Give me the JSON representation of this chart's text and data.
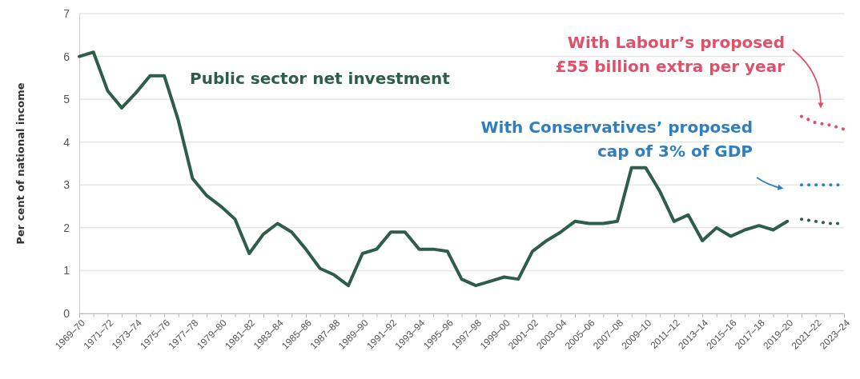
{
  "chart_data": {
    "type": "line",
    "ylabel": "Per cent of national income",
    "categories": [
      "1969–70",
      null,
      "1971–72",
      null,
      "1973–74",
      null,
      "1975–76",
      null,
      "1977–78",
      null,
      "1979–80",
      null,
      "1981–82",
      null,
      "1983–84",
      null,
      "1985–86",
      null,
      "1987–88",
      null,
      "1989–90",
      null,
      "1991–92",
      null,
      "1993–94",
      null,
      "1995–96",
      null,
      "1997–98",
      null,
      "1999–00",
      null,
      "2001–02",
      null,
      "2003–04",
      null,
      "2005–06",
      null,
      "2007–08",
      null,
      "2009–10",
      null,
      "2011–12",
      null,
      "2013–14",
      null,
      "2015–16",
      null,
      "2017–18",
      null,
      "2019–20",
      null,
      "2021–22",
      null,
      "2023–24"
    ],
    "series": [
      {
        "name": "Public sector net investment",
        "color": "#2e5e4a",
        "line_style": "solid",
        "values": [
          6.0,
          6.1,
          5.2,
          4.8,
          5.15,
          5.55,
          5.55,
          4.5,
          3.15,
          2.75,
          2.5,
          2.2,
          1.4,
          1.85,
          2.1,
          1.9,
          1.5,
          1.05,
          0.9,
          0.65,
          1.4,
          1.5,
          1.9,
          1.9,
          1.5,
          1.5,
          1.45,
          0.8,
          0.65,
          0.75,
          0.85,
          0.8,
          1.45,
          1.7,
          1.9,
          2.15,
          2.1,
          2.1,
          2.15,
          3.4,
          3.4,
          2.85,
          2.15,
          2.3,
          1.7,
          2.0,
          1.8,
          1.95,
          2.05,
          1.95,
          2.15,
          null,
          null,
          null,
          null
        ]
      },
      {
        "color": "#2e5e4a",
        "line_style": "dotted",
        "values": [
          null,
          null,
          null,
          null,
          null,
          null,
          null,
          null,
          null,
          null,
          null,
          null,
          null,
          null,
          null,
          null,
          null,
          null,
          null,
          null,
          null,
          null,
          null,
          null,
          null,
          null,
          null,
          null,
          null,
          null,
          null,
          null,
          null,
          null,
          null,
          null,
          null,
          null,
          null,
          null,
          null,
          null,
          null,
          null,
          null,
          null,
          null,
          null,
          null,
          null,
          null,
          2.2,
          2.15,
          2.1,
          2.1
        ]
      },
      {
        "name": "With Conservatives’ proposed\ncap of 3% of GDP",
        "color": "#2f7fc0",
        "line_style": "dotted",
        "values": [
          null,
          null,
          null,
          null,
          null,
          null,
          null,
          null,
          null,
          null,
          null,
          null,
          null,
          null,
          null,
          null,
          null,
          null,
          null,
          null,
          null,
          null,
          null,
          null,
          null,
          null,
          null,
          null,
          null,
          null,
          null,
          null,
          null,
          null,
          null,
          null,
          null,
          null,
          null,
          null,
          null,
          null,
          null,
          null,
          null,
          null,
          null,
          null,
          null,
          null,
          null,
          3.0,
          3.0,
          3.0,
          3.0
        ]
      },
      {
        "name": "With Labour’s proposed\n£55 billion extra per year",
        "color": "#e0506a",
        "line_style": "dotted",
        "values": [
          null,
          null,
          null,
          null,
          null,
          null,
          null,
          null,
          null,
          null,
          null,
          null,
          null,
          null,
          null,
          null,
          null,
          null,
          null,
          null,
          null,
          null,
          null,
          null,
          null,
          null,
          null,
          null,
          null,
          null,
          null,
          null,
          null,
          null,
          null,
          null,
          null,
          null,
          null,
          null,
          null,
          null,
          null,
          null,
          null,
          null,
          null,
          null,
          null,
          null,
          null,
          4.6,
          4.45,
          4.4,
          4.3
        ]
      }
    ],
    "ylim": [
      0,
      7
    ],
    "yticks": [
      0,
      1,
      2,
      3,
      4,
      5,
      6,
      7
    ],
    "grid": "y"
  }
}
